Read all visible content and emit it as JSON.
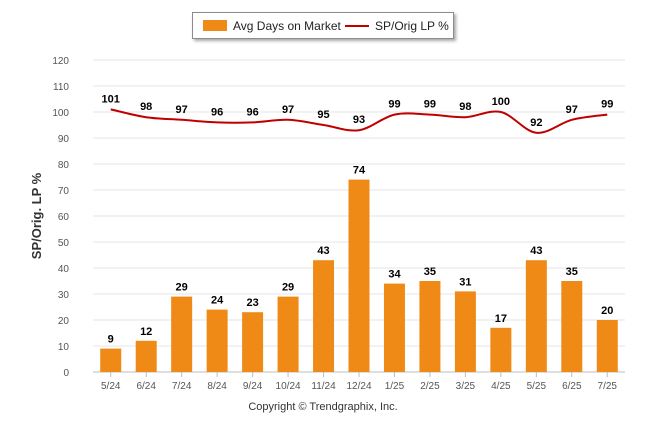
{
  "colors": {
    "bar": "#ef8a17",
    "line": "#c00000",
    "grid": "#e6e6e6",
    "axis_text": "#555555",
    "label_text": "#000000"
  },
  "legend": {
    "bar_label": "Avg Days on Market",
    "line_label": "SP/Orig LP %",
    "position": "top-center"
  },
  "copyright": "Copyright © Trendgraphix, Inc.",
  "chart_data": {
    "type": "bar",
    "title": "",
    "xlabel": "",
    "ylabel": "SP/Orig. LP %",
    "ylim": [
      0,
      120
    ],
    "yticks": [
      0,
      10,
      20,
      30,
      40,
      50,
      60,
      70,
      80,
      90,
      100,
      110,
      120
    ],
    "grid": true,
    "categories": [
      "5/24",
      "6/24",
      "7/24",
      "8/24",
      "9/24",
      "10/24",
      "11/24",
      "12/24",
      "1/25",
      "2/25",
      "3/25",
      "4/25",
      "5/25",
      "6/25",
      "7/25"
    ],
    "series": [
      {
        "name": "Avg Days on Market",
        "type": "bar",
        "values": [
          9,
          12,
          29,
          24,
          23,
          29,
          43,
          74,
          34,
          35,
          31,
          17,
          43,
          35,
          20
        ]
      },
      {
        "name": "SP/Orig LP %",
        "type": "line",
        "values": [
          101,
          98,
          97,
          96,
          96,
          97,
          95,
          93,
          99,
          99,
          98,
          100,
          92,
          97,
          99
        ]
      }
    ]
  }
}
